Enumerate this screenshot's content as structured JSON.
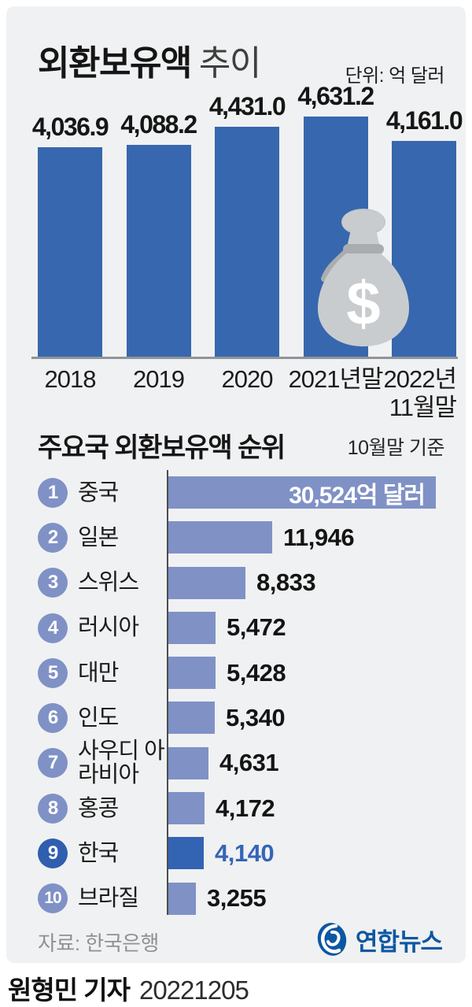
{
  "top_section": {
    "title_bold": "외환보유액",
    "title_light": "추이",
    "unit": "단위: 억 달러",
    "money_bag_dollar": "$"
  },
  "rank_section": {
    "title": "주요국 외환보유액 순위",
    "asof": "10월말 기준"
  },
  "footer": {
    "source": "자료: 한국은행",
    "agency": "연합뉴스",
    "reporter": "원형민 기자",
    "date": "20221205"
  },
  "colors": {
    "card_bg": "#f0f1f2",
    "bar_dark_blue": "#3767ae",
    "bar_periwinkle": "#8091c6",
    "korea_highlight": "#3364b3",
    "korea_value_text": "#3465b7",
    "yonhap_blue": "#0c57a2",
    "bag_gray": "#c9ccce"
  },
  "chart_data": [
    {
      "type": "bar",
      "title": "외환보유액 추이",
      "unit": "억 달러",
      "categories": [
        "2018",
        "2019",
        "2020",
        "2021년말",
        "2022년\n11월말"
      ],
      "values": [
        4036.9,
        4088.2,
        4431.0,
        4631.2,
        4161.0
      ],
      "labels": [
        "4,036.9",
        "4,088.2",
        "4,431.0",
        "4,631.2",
        "4,161.0"
      ],
      "ylim": [
        0,
        4631.2
      ],
      "grid": false,
      "bar_color": "#3767ae"
    },
    {
      "type": "bar",
      "orientation": "horizontal",
      "title": "주요국 외환보유액 순위",
      "asof": "10월말 기준",
      "ranks": [
        1,
        2,
        3,
        4,
        5,
        6,
        7,
        8,
        9,
        10
      ],
      "categories": [
        "중국",
        "일본",
        "스위스",
        "러시아",
        "대만",
        "인도",
        "사우디 아라비아",
        "홍콩",
        "한국",
        "브라질"
      ],
      "values": [
        30524,
        11946,
        8833,
        5472,
        5428,
        5340,
        4631,
        4172,
        4140,
        3255
      ],
      "labels": [
        "30,524억 달러",
        "11,946",
        "8,833",
        "5,472",
        "5,428",
        "5,340",
        "4,631",
        "4,172",
        "4,140",
        "3,255"
      ],
      "value_label_inside_first": true,
      "highlight_index": 8,
      "xlim": [
        0,
        30524
      ],
      "grid": false,
      "bar_color": "#8091c6",
      "highlight_color": "#3364b3"
    }
  ]
}
